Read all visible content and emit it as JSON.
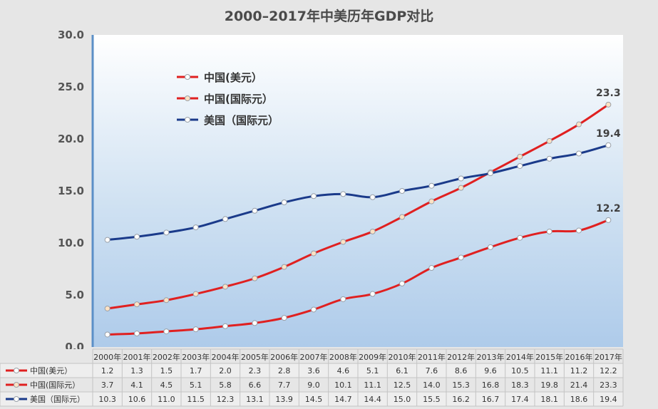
{
  "title": "2000–2017年中美历年GDP对比",
  "chart_data": {
    "type": "line",
    "title": "2000–2017年中美历年GDP对比",
    "categories": [
      "2000年",
      "2001年",
      "2002年",
      "2003年",
      "2004年",
      "2005年",
      "2006年",
      "2007年",
      "2008年",
      "2009年",
      "2010年",
      "2011年",
      "2012年",
      "2013年",
      "2014年",
      "2015年",
      "2016年",
      "2017年"
    ],
    "ylim": [
      0,
      30
    ],
    "yticks": [
      "0.0",
      "5.0",
      "10.0",
      "15.0",
      "20.0",
      "25.0",
      "30.0"
    ],
    "grid": false,
    "legend_position": "top-left",
    "series": [
      {
        "name": "中国(美元）",
        "color": "#e02020",
        "marker_fill": "#ffffff",
        "values": [
          1.2,
          1.3,
          1.5,
          1.7,
          2.0,
          2.3,
          2.8,
          3.6,
          4.6,
          5.1,
          6.1,
          7.6,
          8.6,
          9.6,
          10.5,
          11.1,
          11.2,
          12.2
        ],
        "end_label": "12.2"
      },
      {
        "name": "中国(国际元）",
        "color": "#e02020",
        "marker_fill": "#fde2c4",
        "values": [
          3.7,
          4.1,
          4.5,
          5.1,
          5.8,
          6.6,
          7.7,
          9.0,
          10.1,
          11.1,
          12.5,
          14.0,
          15.3,
          16.8,
          18.3,
          19.8,
          21.4,
          23.3
        ],
        "end_label": "23.3"
      },
      {
        "name": "美国（国际元）",
        "color": "#1a3a8a",
        "marker_fill": "#ffffff",
        "values": [
          10.3,
          10.6,
          11.0,
          11.5,
          12.3,
          13.1,
          13.9,
          14.5,
          14.7,
          14.4,
          15.0,
          15.5,
          16.2,
          16.7,
          17.4,
          18.1,
          18.6,
          19.4
        ],
        "end_label": "19.4"
      }
    ],
    "table": {
      "rows": [
        [
          "1.2",
          "1.3",
          "1.5",
          "1.7",
          "2.0",
          "2.3",
          "2.8",
          "3.6",
          "4.6",
          "5.1",
          "6.1",
          "7.6",
          "8.6",
          "9.6",
          "10.5",
          "11.1",
          "11.2",
          "12.2"
        ],
        [
          "3.7",
          "4.1",
          "4.5",
          "5.1",
          "5.8",
          "6.6",
          "7.7",
          "9.0",
          "10.1",
          "11.1",
          "12.5",
          "14.0",
          "15.3",
          "16.8",
          "18.3",
          "19.8",
          "21.4",
          "23.3"
        ],
        [
          "10.3",
          "10.6",
          "11.0",
          "11.5",
          "12.3",
          "13.1",
          "13.9",
          "14.5",
          "14.7",
          "14.4",
          "15.0",
          "15.5",
          "16.2",
          "16.7",
          "17.4",
          "18.1",
          "18.6",
          "19.4"
        ]
      ]
    }
  }
}
